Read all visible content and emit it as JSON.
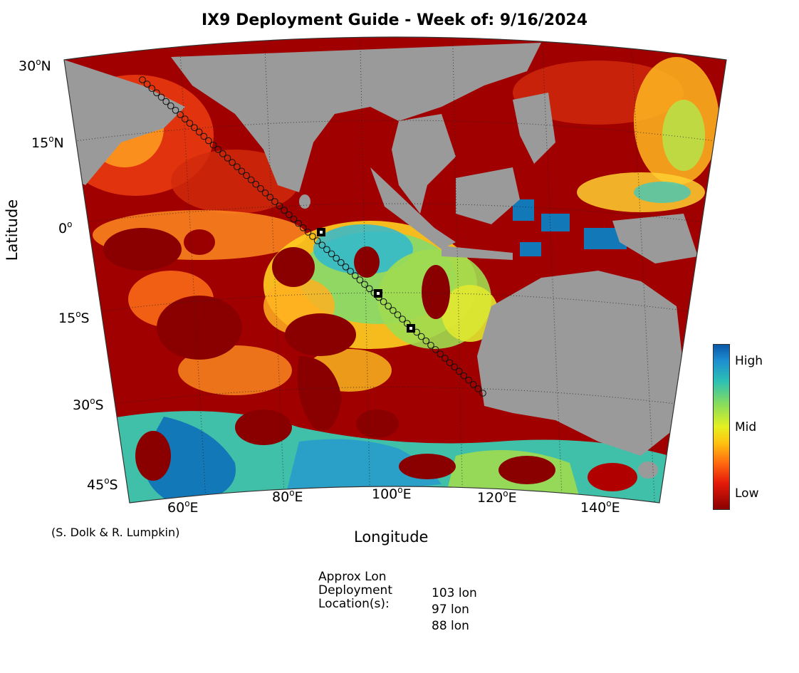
{
  "title": "IX9 Deployment Guide - Week of: 9/16/2024",
  "axes": {
    "xlabel": "Longitude",
    "ylabel": "Latitude",
    "lat_ticks": [
      {
        "deg": "30",
        "hemi": "N"
      },
      {
        "deg": "15",
        "hemi": "N"
      },
      {
        "deg": "0",
        "hemi": ""
      },
      {
        "deg": "15",
        "hemi": "S"
      },
      {
        "deg": "30",
        "hemi": "S"
      },
      {
        "deg": "45",
        "hemi": "S"
      }
    ],
    "lon_ticks": [
      {
        "deg": "60",
        "hemi": "E"
      },
      {
        "deg": "80",
        "hemi": "E"
      },
      {
        "deg": "100",
        "hemi": "E"
      },
      {
        "deg": "120",
        "hemi": "E"
      },
      {
        "deg": "140",
        "hemi": "E"
      }
    ]
  },
  "colorbar": {
    "labels": {
      "high": "High",
      "mid": "Mid",
      "low": "Low"
    }
  },
  "credit": "(S. Dolk & R. Lumpkin)",
  "deployment": {
    "label_lines": [
      "Approx Lon",
      "Deployment",
      "Location(s):"
    ],
    "locations": [
      "103 lon",
      "97 lon",
      "88 lon"
    ]
  },
  "colors": {
    "land": "#9a9a9a",
    "low": "#8a0000",
    "high": "#0a58a8"
  }
}
